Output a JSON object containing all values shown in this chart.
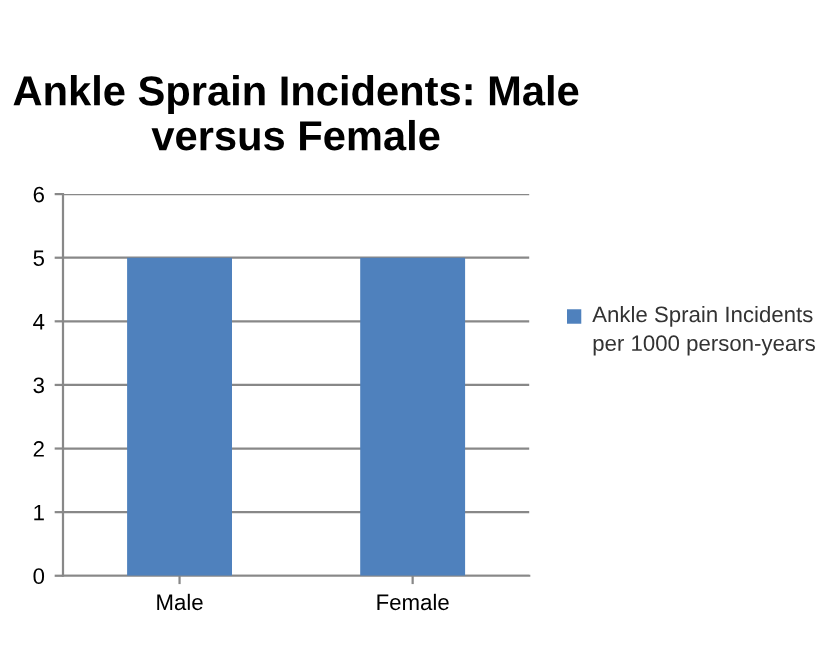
{
  "chart_data": {
    "type": "bar",
    "title": "Ankle Sprain Incidents: Male versus Female",
    "categories": [
      "Male",
      "Female"
    ],
    "series": [
      {
        "name": "Ankle Sprain Incidents per 1000 person-years",
        "color": "#4f81bd",
        "values": [
          5,
          5
        ]
      }
    ],
    "ylim": [
      0,
      6
    ],
    "yticks": [
      0,
      1,
      2,
      3,
      4,
      5,
      6
    ],
    "grid": "y",
    "legend": "right"
  }
}
